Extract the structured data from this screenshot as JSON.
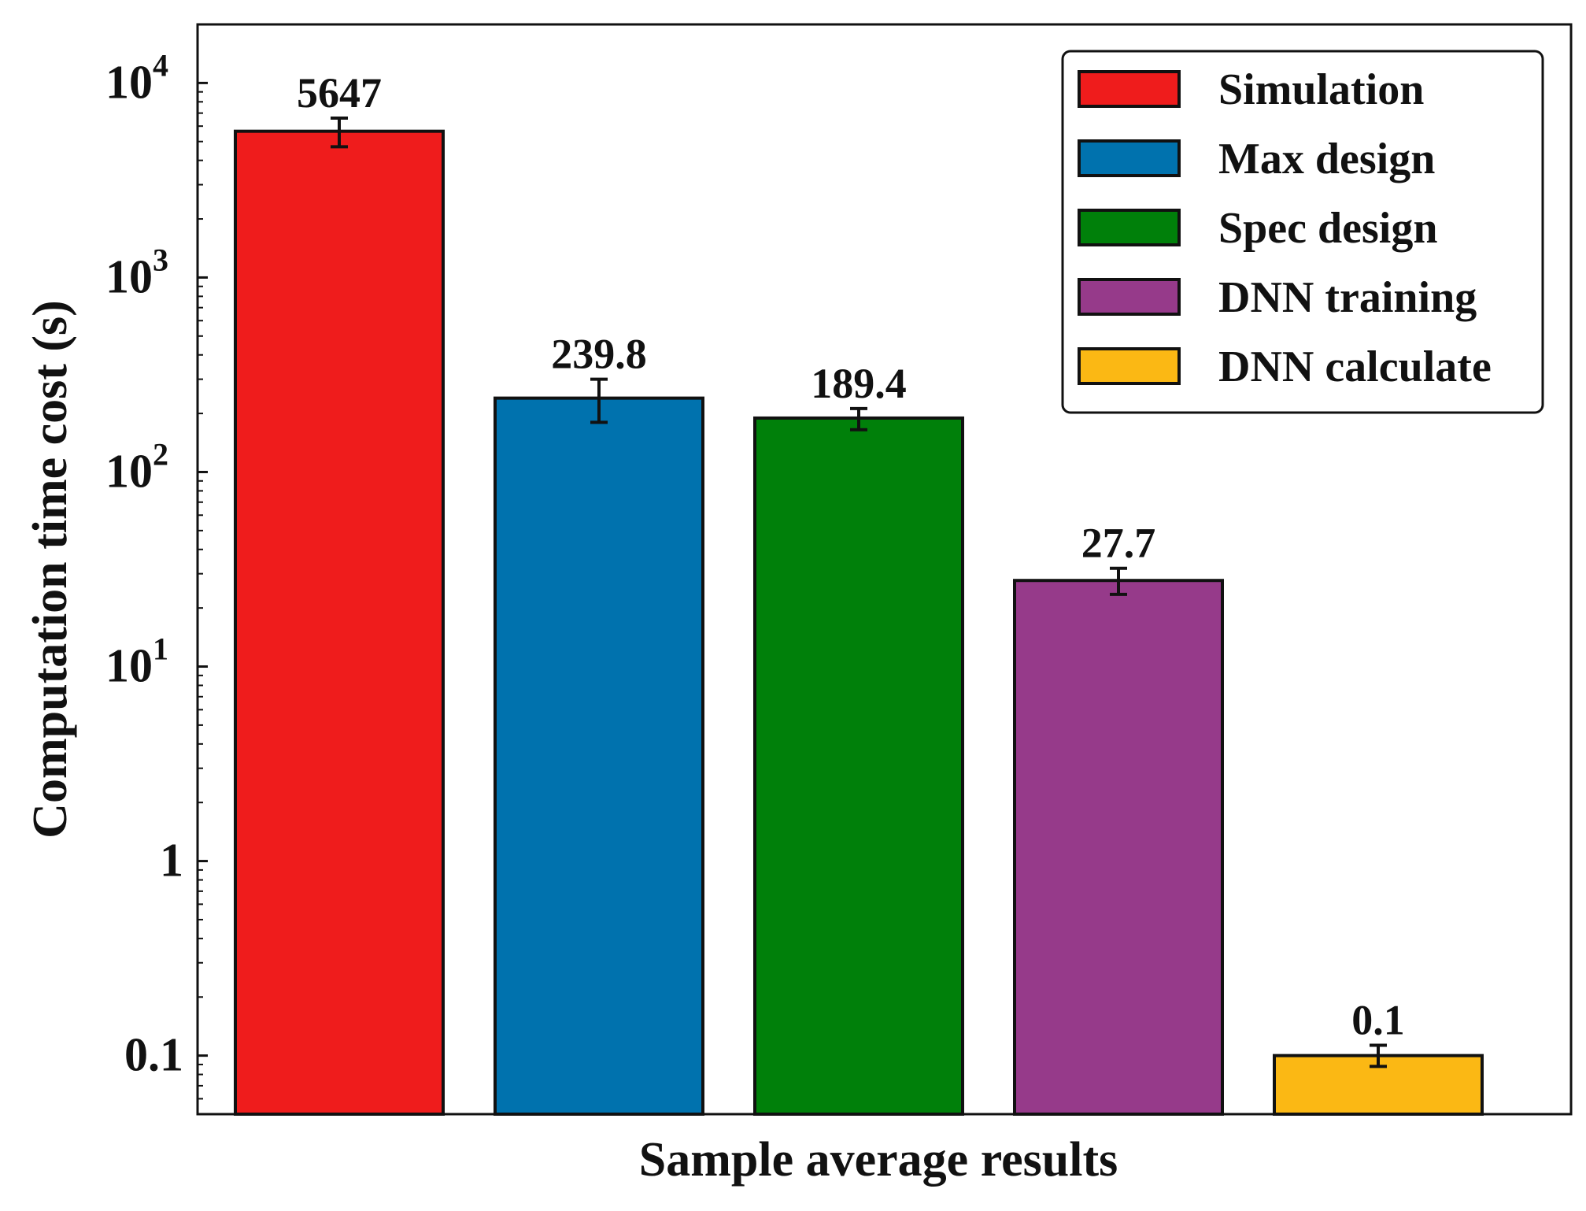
{
  "chart_data": {
    "type": "bar",
    "title": "",
    "xlabel": "Sample average results",
    "ylabel": "Computation time cost (s)",
    "yscale": "log",
    "ylim": [
      0.05,
      20000
    ],
    "legend_position": "top-right",
    "categories": [
      "Simulation",
      "Max design",
      "Spec design",
      "DNN training",
      "DNN calculate"
    ],
    "values": [
      5647,
      239.8,
      189.4,
      27.7,
      0.1
    ],
    "value_labels": [
      "5647",
      "239.8",
      "189.4",
      "27.7",
      "0.1"
    ],
    "errors_low": [
      4700,
      180,
      165,
      23.5,
      0.088
    ],
    "errors_high": [
      6600,
      300,
      212,
      32,
      0.113
    ],
    "colors": [
      "#ef1c1c",
      "#0072ae",
      "#00800a",
      "#963a8a",
      "#fbb814"
    ],
    "yticks": [
      {
        "value": 0.1,
        "label": "0.1"
      },
      {
        "value": 1,
        "label": "1"
      },
      {
        "value": 10,
        "base": "10",
        "exp": "1"
      },
      {
        "value": 100,
        "base": "10",
        "exp": "2"
      },
      {
        "value": 1000,
        "base": "10",
        "exp": "3"
      },
      {
        "value": 10000,
        "base": "10",
        "exp": "4"
      }
    ]
  }
}
